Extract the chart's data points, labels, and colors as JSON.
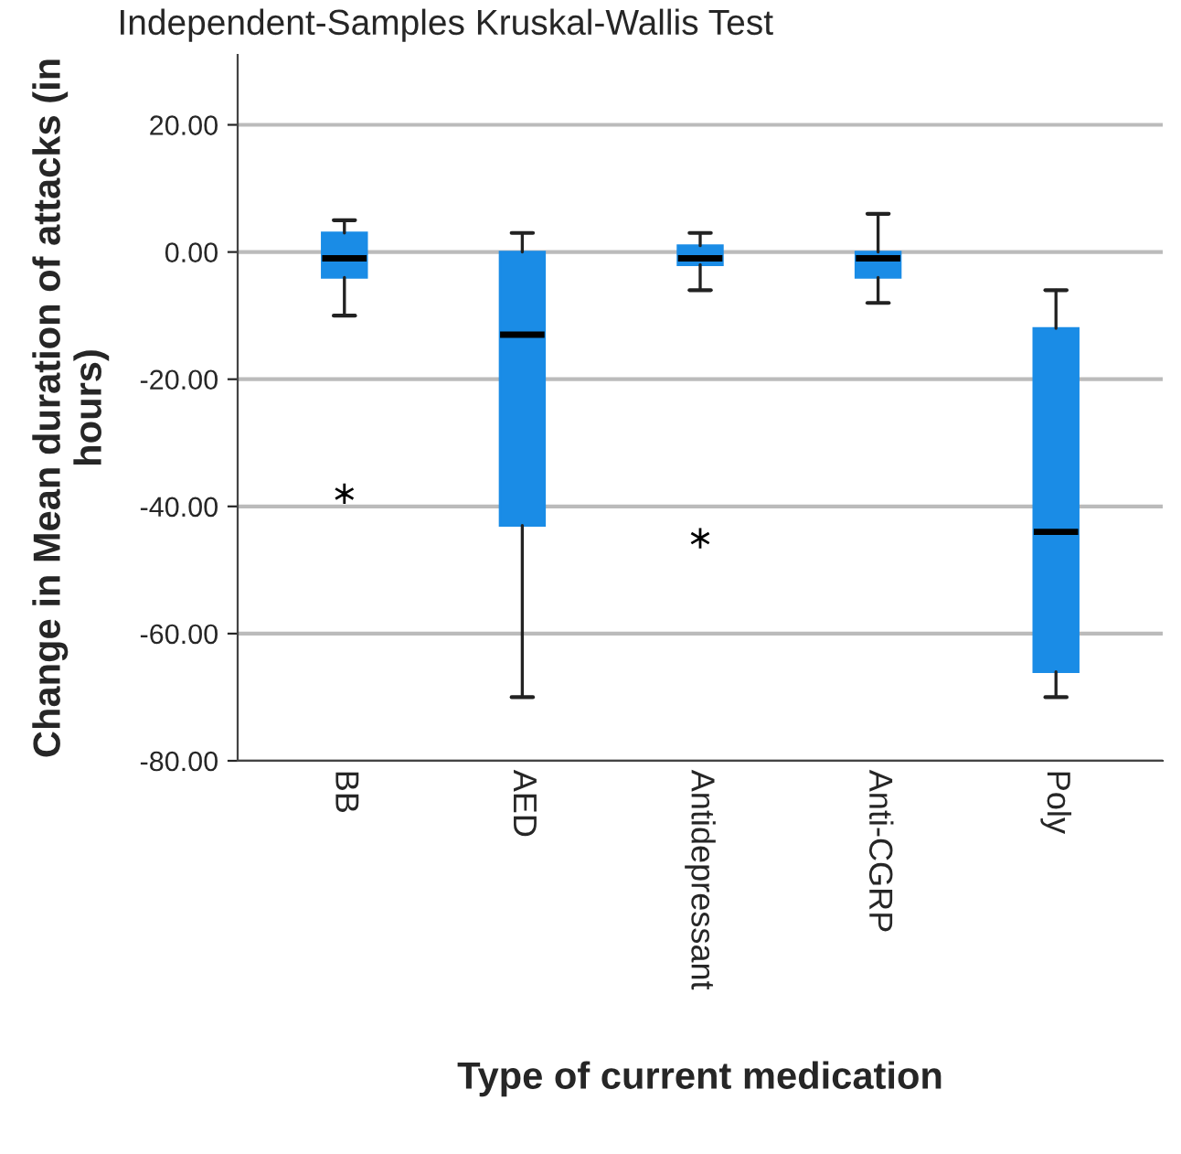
{
  "chart_data": {
    "type": "box",
    "title": "Independent-Samples Kruskal-Wallis Test",
    "xlabel": "Type of current medication",
    "ylabel": "Change in Mean duration of attacks (in hours)",
    "categories": [
      "BB",
      "AED",
      "Antidepressant",
      "Anti-CGRP",
      "Poly"
    ],
    "boxes": [
      {
        "low": -10,
        "q1": -4,
        "median": -1,
        "q3": 3,
        "high": 5,
        "outliers": [
          -38
        ]
      },
      {
        "low": -70,
        "q1": -43,
        "median": -13,
        "q3": 0,
        "high": 3
      },
      {
        "low": -6,
        "q1": -2,
        "median": -1,
        "q3": 1,
        "high": 3,
        "outliers": [
          -45
        ]
      },
      {
        "low": -8,
        "q1": -4,
        "median": -1,
        "q3": 0,
        "high": 6
      },
      {
        "low": -70,
        "q1": -66,
        "median": -44,
        "q3": -12,
        "high": -6
      }
    ],
    "color": "#1a8ce6",
    "ylim": [
      -80,
      31
    ],
    "yticks": [
      {
        "value": -80,
        "label": "-80.00"
      },
      {
        "value": -60,
        "label": "-60.00"
      },
      {
        "value": -40,
        "label": "-40.00"
      },
      {
        "value": -20,
        "label": "-20.00"
      },
      {
        "value": 0,
        "label": "0.00"
      },
      {
        "value": 20,
        "label": "20.00"
      }
    ],
    "grid": "y",
    "marker": "star"
  }
}
